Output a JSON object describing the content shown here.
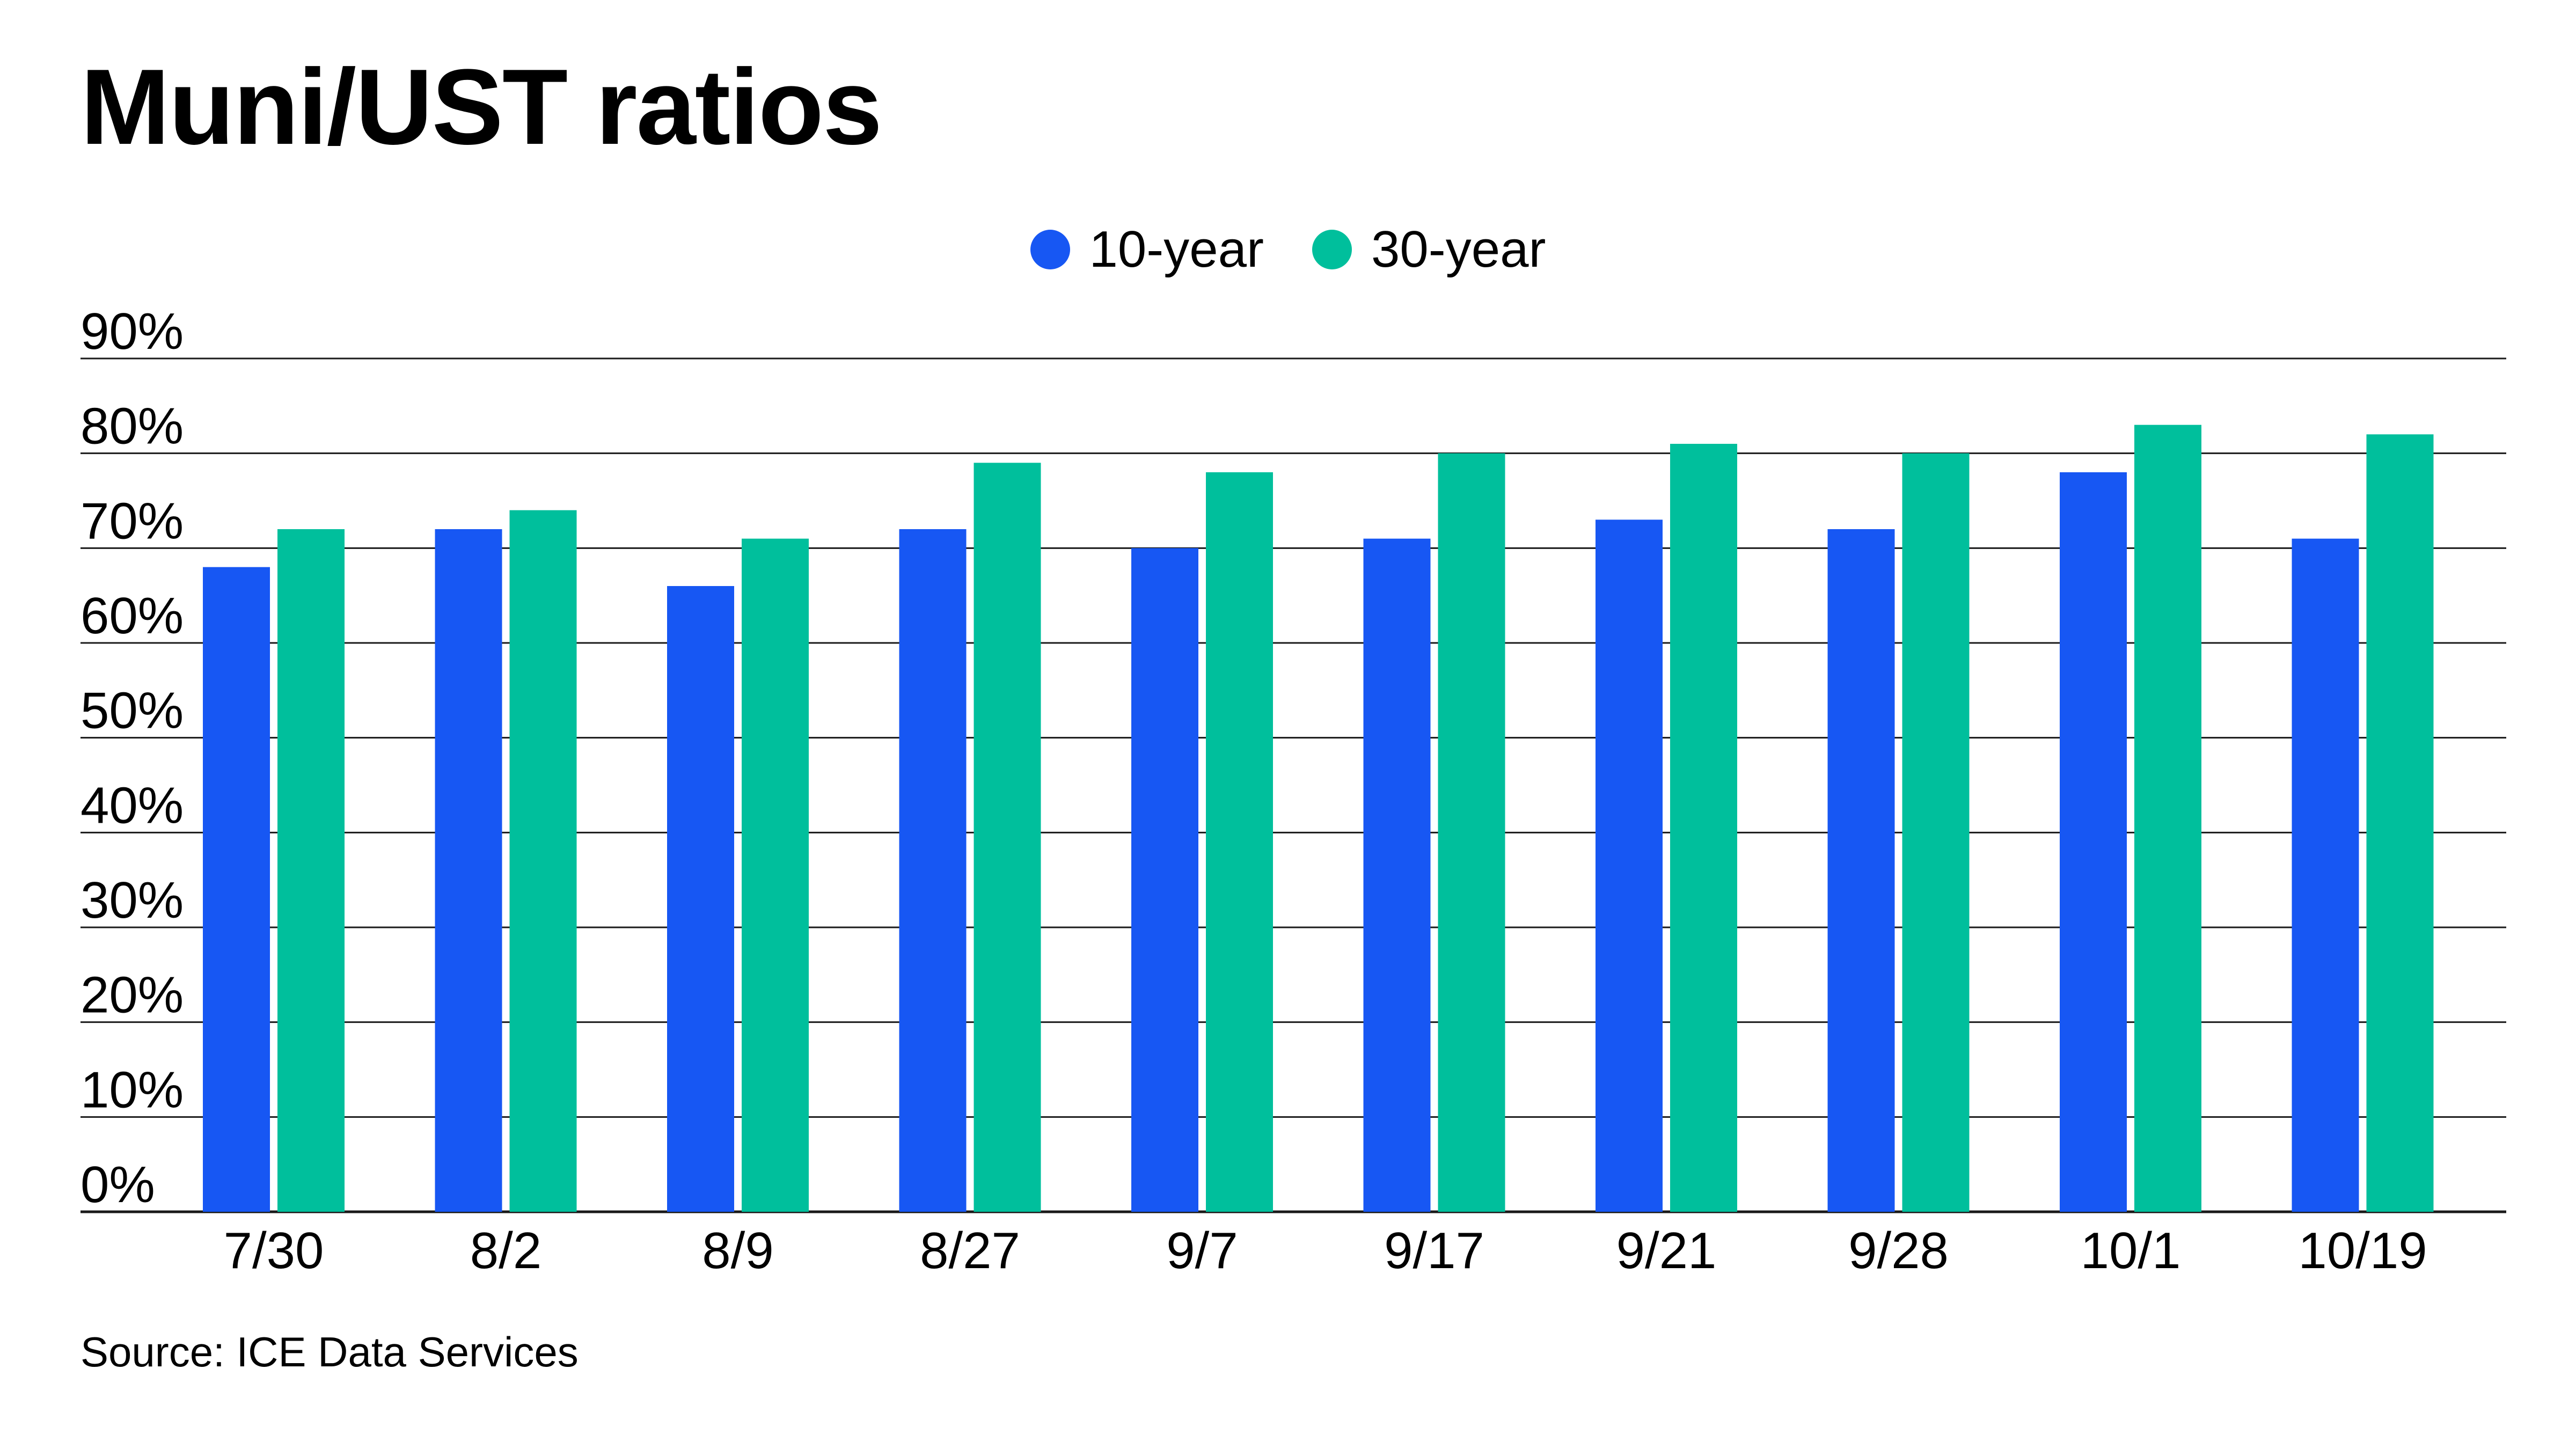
{
  "chart_data": {
    "type": "bar",
    "title": "Muni/UST ratios",
    "xlabel": "",
    "ylabel": "",
    "categories": [
      "7/30",
      "8/2",
      "8/9",
      "8/27",
      "9/7",
      "9/17",
      "9/21",
      "9/28",
      "10/1",
      "10/19"
    ],
    "series": [
      {
        "name": "10-year",
        "color": "#1757F3",
        "values": [
          68,
          72,
          66,
          72,
          70,
          71,
          73,
          72,
          78,
          71
        ]
      },
      {
        "name": "30-year",
        "color": "#00BF9C",
        "values": [
          72,
          74,
          71,
          79,
          78,
          80,
          81,
          80,
          83,
          82
        ]
      }
    ],
    "ylim": [
      0,
      90
    ],
    "yticks": [
      "0%",
      "10%",
      "20%",
      "30%",
      "40%",
      "50%",
      "60%",
      "70%",
      "80%",
      "90%"
    ],
    "grid": true,
    "legend_position": "top-center",
    "source": "Source: ICE Data Services"
  }
}
